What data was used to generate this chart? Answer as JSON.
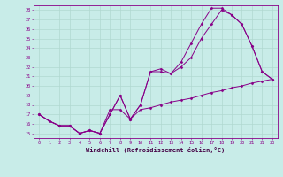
{
  "xlabel": "Windchill (Refroidissement éolien,°C)",
  "background_color": "#c8ece8",
  "grid_color": "#b0d8d0",
  "line_color": "#880088",
  "spine_color": "#880088",
  "tick_color": "#880088",
  "label_color": "#440044",
  "ylim": [
    14.5,
    28.5
  ],
  "xlim": [
    -0.5,
    23.5
  ],
  "yticks": [
    15,
    16,
    17,
    18,
    19,
    20,
    21,
    22,
    23,
    24,
    25,
    26,
    27,
    28
  ],
  "xticks": [
    0,
    1,
    2,
    3,
    4,
    5,
    6,
    7,
    8,
    9,
    10,
    11,
    12,
    13,
    14,
    15,
    16,
    17,
    18,
    19,
    20,
    21,
    22,
    23
  ],
  "series": [
    {
      "x": [
        0,
        1,
        2,
        3,
        4,
        5,
        6,
        7,
        8,
        9,
        10,
        11,
        12,
        13,
        14,
        15,
        16,
        17,
        18,
        19,
        20,
        21,
        22,
        23
      ],
      "y": [
        17.0,
        16.3,
        15.8,
        15.8,
        15.0,
        15.3,
        15.0,
        17.0,
        19.0,
        16.5,
        18.0,
        21.5,
        21.5,
        21.3,
        22.0,
        23.0,
        25.0,
        26.5,
        28.0,
        27.5,
        26.5,
        24.2,
        21.5,
        20.7
      ]
    },
    {
      "x": [
        0,
        1,
        2,
        3,
        4,
        5,
        6,
        7,
        8,
        9,
        10,
        11,
        12,
        13,
        14,
        15,
        16,
        17,
        18,
        19,
        20,
        21,
        22,
        23
      ],
      "y": [
        17.0,
        16.3,
        15.8,
        15.8,
        15.0,
        15.3,
        15.0,
        17.0,
        19.0,
        16.5,
        18.0,
        21.5,
        21.8,
        21.3,
        22.5,
        24.5,
        26.5,
        28.2,
        28.2,
        27.5,
        26.5,
        24.2,
        21.5,
        20.7
      ]
    },
    {
      "x": [
        0,
        1,
        2,
        3,
        4,
        5,
        6,
        7,
        8,
        9,
        10,
        11,
        12,
        13,
        14,
        15,
        16,
        17,
        18,
        19,
        20,
        21,
        22,
        23
      ],
      "y": [
        17.0,
        16.3,
        15.8,
        15.8,
        15.0,
        15.3,
        15.0,
        17.5,
        17.5,
        16.5,
        17.5,
        17.7,
        18.0,
        18.3,
        18.5,
        18.7,
        19.0,
        19.3,
        19.5,
        19.8,
        20.0,
        20.3,
        20.5,
        20.7
      ]
    }
  ]
}
